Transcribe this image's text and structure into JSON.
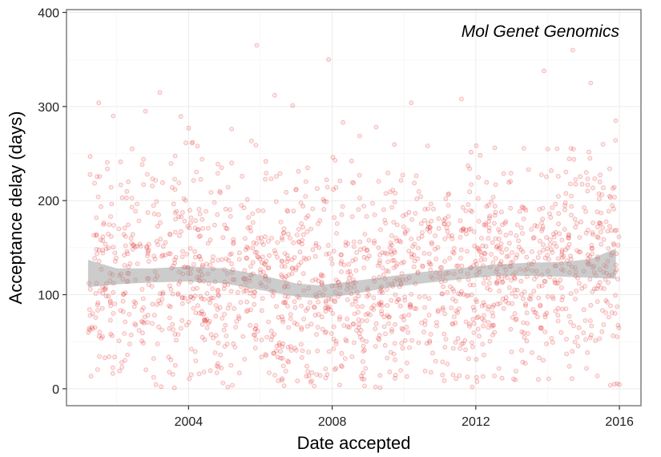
{
  "chart_data": {
    "type": "scatter",
    "title": "",
    "annotation": "Mol Genet Genomics",
    "xlabel": "Date accepted",
    "ylabel": "Acceptance delay (days)",
    "xlim": [
      2000.6,
      2016.6
    ],
    "ylim": [
      -18,
      403
    ],
    "x_ticks": [
      2004,
      2008,
      2012,
      2016
    ],
    "x_tick_labels": [
      "2004",
      "2008",
      "2012",
      "2016"
    ],
    "y_ticks": [
      0,
      100,
      200,
      300,
      400
    ],
    "y_tick_labels": [
      "0",
      "100",
      "200",
      "300",
      "400"
    ],
    "grid": true,
    "legend": "none",
    "colors": {
      "points": "#e41a1c",
      "smooth_band": "#999999",
      "panel_border": "#7f7f7f",
      "grid": "#ebebeb"
    },
    "series": [
      {
        "kind": "points",
        "x_range": [
          2001.2,
          2016.0
        ],
        "count_estimate": 1800,
        "y_range": [
          0,
          365
        ],
        "notable_points": [
          {
            "x": 2001.5,
            "y": 304
          },
          {
            "x": 2001.9,
            "y": 290
          },
          {
            "x": 2002.8,
            "y": 295
          },
          {
            "x": 2003.2,
            "y": 315
          },
          {
            "x": 2004.0,
            "y": 277
          },
          {
            "x": 2005.2,
            "y": 276
          },
          {
            "x": 2005.9,
            "y": 365
          },
          {
            "x": 2006.4,
            "y": 312
          },
          {
            "x": 2006.9,
            "y": 301
          },
          {
            "x": 2007.9,
            "y": 350
          },
          {
            "x": 2008.3,
            "y": 283
          },
          {
            "x": 2010.2,
            "y": 304
          },
          {
            "x": 2011.6,
            "y": 308
          },
          {
            "x": 2013.9,
            "y": 338
          },
          {
            "x": 2014.7,
            "y": 360
          },
          {
            "x": 2015.2,
            "y": 325
          },
          {
            "x": 2015.9,
            "y": 285
          },
          {
            "x": 2007.4,
            "y": 7
          },
          {
            "x": 2011.9,
            "y": 2
          },
          {
            "x": 2012.2,
            "y": 13
          }
        ]
      },
      {
        "kind": "smooth",
        "x": [
          2001.2,
          2002.0,
          2003.0,
          2004.0,
          2005.0,
          2006.0,
          2007.0,
          2007.6,
          2008.5,
          2009.5,
          2010.5,
          2011.5,
          2012.5,
          2013.5,
          2014.5,
          2015.2,
          2015.9
        ],
        "y": [
          123,
          119,
          120,
          122,
          120,
          113,
          105,
          103,
          107,
          113,
          118,
          122,
          126,
          127,
          127,
          128,
          133
        ],
        "band_low": [
          108,
          111,
          113,
          114,
          112,
          105,
          98,
          96,
          100,
          107,
          112,
          116,
          120,
          120,
          119,
          118,
          117
        ],
        "band_high": [
          137,
          128,
          128,
          130,
          128,
          121,
          112,
          110,
          114,
          119,
          124,
          128,
          132,
          134,
          135,
          138,
          149
        ]
      }
    ]
  }
}
